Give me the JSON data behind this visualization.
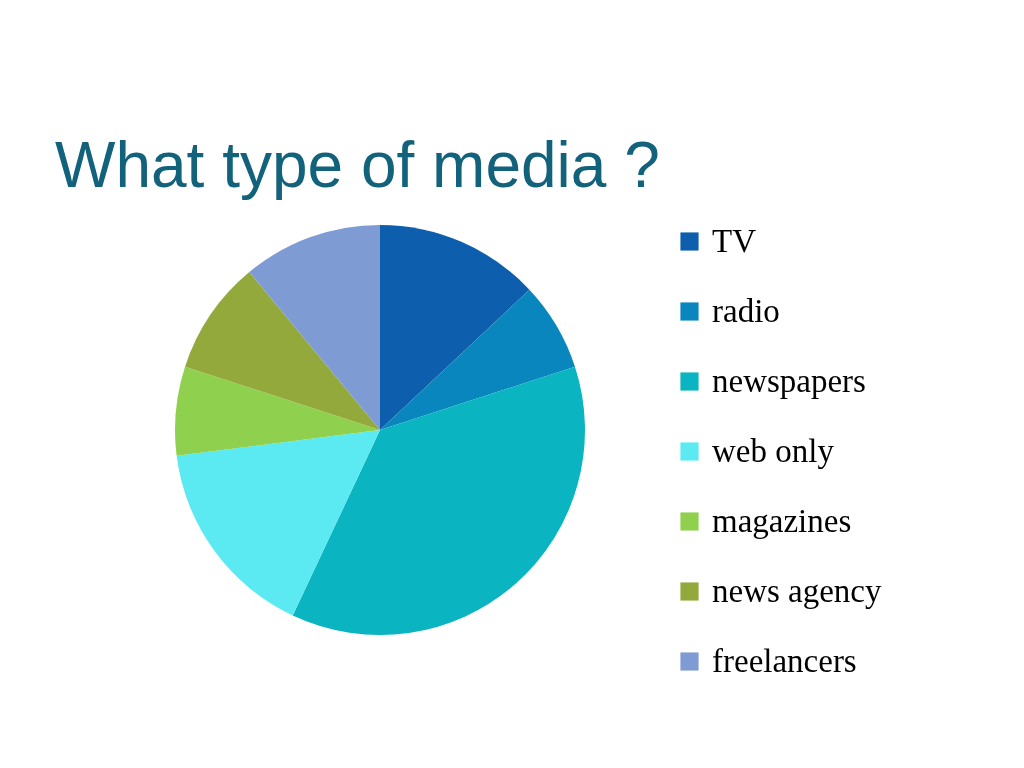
{
  "chart_data": {
    "type": "pie",
    "title": "What type of media ?",
    "categories": [
      "TV",
      "radio",
      "newspapers",
      "web only",
      "magazines",
      "news agency",
      "freelancers"
    ],
    "values": [
      13,
      7,
      37,
      16,
      7,
      9,
      11
    ],
    "colors": [
      "#0d5fae",
      "#0a86bf",
      "#0ab4c1",
      "#5ceaf2",
      "#8fd14f",
      "#93a93c",
      "#7f9bd3"
    ],
    "legend": "right"
  }
}
